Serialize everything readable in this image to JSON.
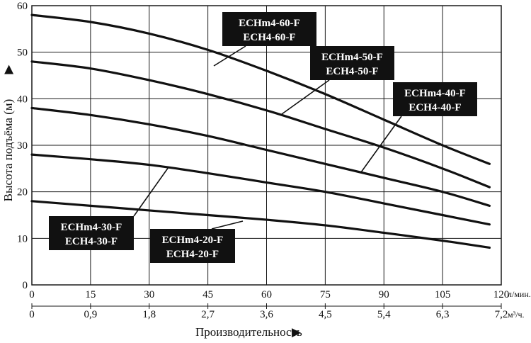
{
  "chart_data": {
    "type": "line",
    "title": "",
    "ylabel": "Высота подъёма (м)",
    "xlabel": "Производительность",
    "xlim": [
      0,
      120
    ],
    "ylim": [
      0,
      60
    ],
    "grid": true,
    "x_ticks_primary": [
      "0",
      "15",
      "30",
      "45",
      "60",
      "75",
      "90",
      "105",
      "120"
    ],
    "x_unit_primary": "л/мин.",
    "x_ticks_secondary": [
      "0",
      "0,9",
      "1,8",
      "2,7",
      "3,6",
      "4,5",
      "5,4",
      "6,3",
      "7,2"
    ],
    "x_unit_secondary": "м³/ч.",
    "y_ticks": [
      "0",
      "10",
      "20",
      "30",
      "40",
      "50",
      "60"
    ],
    "x": [
      0,
      15,
      30,
      45,
      60,
      75,
      90,
      105,
      117
    ],
    "series": [
      {
        "name": "ECHm4-60-F / ECH4-60-F",
        "label_lines": [
          "ECHm4-60-F",
          "ECH4-60-F"
        ],
        "values": [
          58,
          56.5,
          54,
          50.5,
          46,
          41,
          35.5,
          30,
          26
        ]
      },
      {
        "name": "ECHm4-50-F / ECH4-50-F",
        "label_lines": [
          "ECHm4-50-F",
          "ECH4-50-F"
        ],
        "values": [
          48,
          46.5,
          44,
          41,
          37.5,
          33.5,
          29.5,
          25,
          21
        ]
      },
      {
        "name": "ECHm4-40-F / ECH4-40-F",
        "label_lines": [
          "ECHm4-40-F",
          "ECH4-40-F"
        ],
        "values": [
          38,
          36.5,
          34.5,
          32,
          29,
          26,
          23,
          20,
          17
        ]
      },
      {
        "name": "ECHm4-30-F / ECH4-30-F",
        "label_lines": [
          "ECHm4-30-F",
          "ECH4-30-F"
        ],
        "values": [
          28,
          27,
          25.8,
          24,
          22,
          20,
          17.5,
          15,
          13
        ]
      },
      {
        "name": "ECHm4-20-F / ECH4-20-F",
        "label_lines": [
          "ECHm4-20-F",
          "ECH4-20-F"
        ],
        "values": [
          18,
          17,
          16,
          15,
          14,
          12.8,
          11.2,
          9.5,
          8
        ]
      }
    ]
  }
}
